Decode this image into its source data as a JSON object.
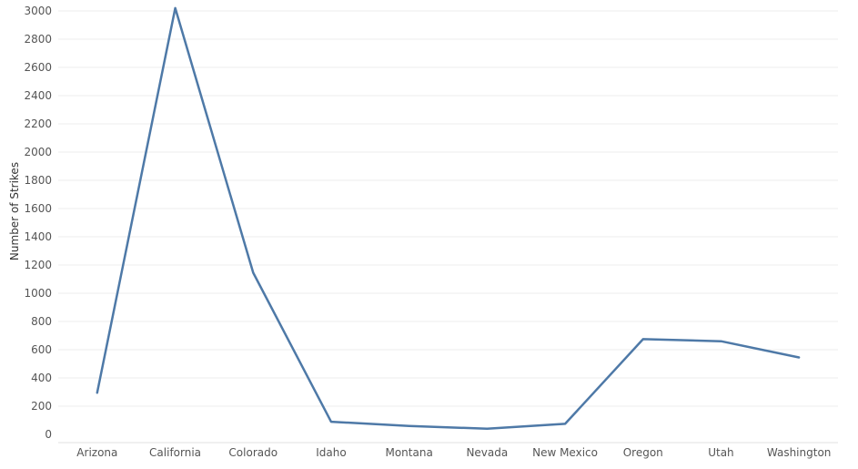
{
  "chart_data": {
    "type": "line",
    "title": "",
    "xlabel": "",
    "ylabel": "Number of Strikes",
    "categories": [
      "Arizona",
      "California",
      "Colorado",
      "Idaho",
      "Montana",
      "Nevada",
      "New Mexico",
      "Oregon",
      "Utah",
      "Washington"
    ],
    "series": [
      {
        "values": [
          295,
          3020,
          1145,
          90,
          60,
          40,
          75,
          675,
          660,
          545
        ]
      }
    ],
    "ylim": [
      0,
      3000
    ],
    "yticks": [
      0,
      200,
      400,
      600,
      800,
      1000,
      1200,
      1400,
      1600,
      1800,
      2000,
      2200,
      2400,
      2600,
      2800,
      3000
    ],
    "grid": true,
    "legend": "none",
    "colors": {
      "line": "#4e79a7",
      "grid": "#eeeeee",
      "axis": "#e0e0e0"
    }
  }
}
